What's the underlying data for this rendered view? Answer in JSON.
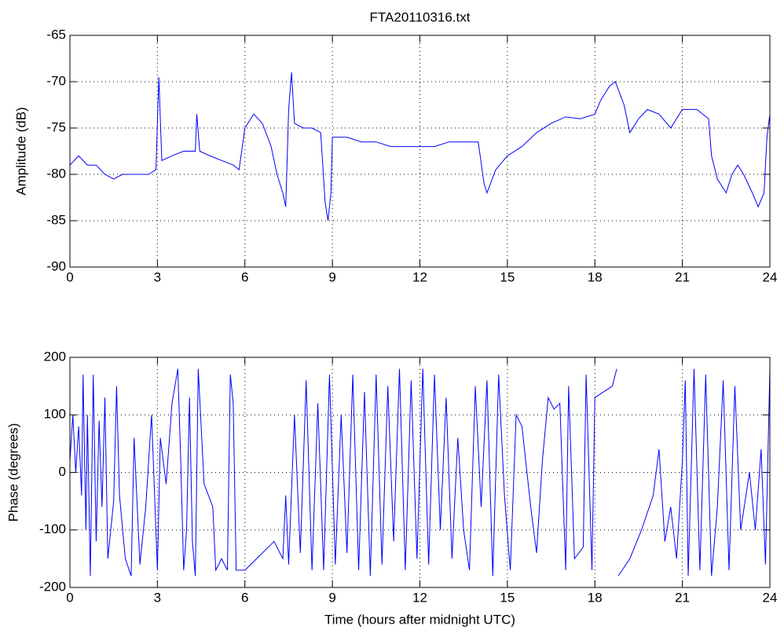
{
  "chart_data": [
    {
      "type": "line",
      "title": "FTA20110316.txt",
      "ylabel": "Amplitude (dB)",
      "color": "#0000ff",
      "grid": true,
      "xlim": [
        0,
        24
      ],
      "xticks": [
        0,
        3,
        6,
        9,
        12,
        15,
        18,
        21,
        24
      ],
      "ylim": [
        -90,
        -65
      ],
      "yticks": [
        -90,
        -85,
        -80,
        -75,
        -70,
        -65
      ],
      "x": [
        0,
        0.3,
        0.6,
        0.9,
        1.2,
        1.5,
        1.8,
        2.1,
        2.4,
        2.7,
        2.95,
        3.05,
        3.15,
        3.5,
        3.9,
        4.3,
        4.35,
        4.45,
        4.8,
        5.2,
        5.6,
        5.8,
        6.0,
        6.3,
        6.6,
        6.9,
        7.1,
        7.3,
        7.4,
        7.5,
        7.6,
        7.7,
        8.0,
        8.3,
        8.6,
        8.75,
        8.85,
        8.95,
        9.0,
        9.5,
        10,
        10.5,
        11,
        11.5,
        12,
        12.5,
        13,
        13.5,
        14.0,
        14.2,
        14.3,
        14.6,
        15,
        15.5,
        16,
        16.5,
        17,
        17.5,
        18,
        18.2,
        18.5,
        18.7,
        19,
        19.2,
        19.5,
        19.8,
        20.2,
        20.6,
        21,
        21.5,
        21.9,
        22,
        22.2,
        22.5,
        22.7,
        22.9,
        23.1,
        23.4,
        23.6,
        23.8,
        23.9,
        24
      ],
      "values": [
        -79,
        -78,
        -79,
        -79,
        -80,
        -80.5,
        -80,
        -80,
        -80,
        -80,
        -79.5,
        -69.5,
        -78.5,
        -78,
        -77.5,
        -77.5,
        -73.5,
        -77.5,
        -78,
        -78.5,
        -79,
        -79.5,
        -75,
        -73.5,
        -74.5,
        -77,
        -80,
        -82,
        -83.5,
        -73,
        -69,
        -74.5,
        -75,
        -75,
        -75.5,
        -83,
        -85,
        -82,
        -76,
        -76,
        -76.5,
        -76.5,
        -77,
        -77,
        -77,
        -77,
        -76.5,
        -76.5,
        -76.5,
        -81,
        -82,
        -79.5,
        -78,
        -77,
        -75.5,
        -74.5,
        -73.8,
        -74,
        -73.5,
        -72,
        -70.5,
        -70,
        -72.5,
        -75.5,
        -74,
        -73,
        -73.5,
        -75,
        -73,
        -73,
        -74,
        -78,
        -80.5,
        -82,
        -80,
        -79,
        -80,
        -82,
        -83.5,
        -82,
        -76,
        -73.5
      ]
    },
    {
      "type": "line",
      "ylabel": "Phase (degrees)",
      "xlabel": "Time (hours after midnight UTC)",
      "color": "#0000ff",
      "grid": true,
      "xlim": [
        0,
        24
      ],
      "xticks": [
        0,
        3,
        6,
        9,
        12,
        15,
        18,
        21,
        24
      ],
      "ylim": [
        -200,
        200
      ],
      "yticks": [
        -200,
        -100,
        0,
        100,
        200
      ],
      "x": [
        0,
        0.1,
        0.2,
        0.3,
        0.4,
        0.45,
        0.55,
        0.6,
        0.7,
        0.8,
        0.9,
        1.0,
        1.1,
        1.2,
        1.3,
        1.5,
        1.6,
        1.7,
        1.9,
        2.1,
        2.2,
        2.4,
        2.6,
        2.8,
        3.0,
        3.1,
        3.3,
        3.5,
        3.7,
        3.8,
        3.9,
        4.0,
        4.1,
        4.2,
        4.3,
        4.4,
        4.6,
        4.9,
        5.0,
        5.2,
        5.4,
        5.5,
        5.6,
        5.7,
        6,
        6.5,
        7.0,
        7.3,
        7.4,
        7.5,
        7.7,
        7.9,
        8.1,
        8.3,
        8.5,
        8.7,
        8.9,
        9.1,
        9.3,
        9.5,
        9.7,
        9.9,
        10.1,
        10.3,
        10.5,
        10.7,
        10.9,
        11.1,
        11.3,
        11.5,
        11.7,
        11.9,
        12.1,
        12.3,
        12.5,
        12.7,
        12.9,
        13.1,
        13.3,
        13.5,
        13.7,
        13.9,
        14.1,
        14.3,
        14.5,
        14.7,
        14.9,
        15.1,
        15.3,
        15.5,
        15.8,
        16.0,
        16.2,
        16.4,
        16.6,
        16.8,
        17.0,
        17.1,
        17.3,
        17.6,
        17.7,
        17.9,
        18.0,
        18.3,
        18.6,
        18.75,
        18.77,
        18.8,
        19.2,
        19.6,
        20.0,
        20.2,
        20.4,
        20.6,
        20.8,
        21.0,
        21.1,
        21.2,
        21.4,
        21.6,
        21.8,
        22.0,
        22.2,
        22.4,
        22.6,
        22.8,
        23.0,
        23.3,
        23.5,
        23.7,
        23.85,
        24
      ],
      "values": [
        20,
        100,
        0,
        80,
        -40,
        170,
        -100,
        100,
        -180,
        170,
        -120,
        90,
        -60,
        130,
        -150,
        -50,
        150,
        -40,
        -150,
        -180,
        60,
        -160,
        -60,
        100,
        -170,
        60,
        -20,
        120,
        180,
        20,
        -170,
        -100,
        130,
        -120,
        -180,
        180,
        -20,
        -60,
        -170,
        -150,
        -170,
        170,
        120,
        -170,
        -170,
        -145,
        -120,
        -150,
        -40,
        -160,
        100,
        -140,
        160,
        -170,
        120,
        -170,
        170,
        -160,
        100,
        -140,
        170,
        -170,
        140,
        -180,
        170,
        -160,
        150,
        -120,
        180,
        -170,
        160,
        -150,
        180,
        -160,
        170,
        -100,
        130,
        -150,
        60,
        -100,
        -170,
        150,
        -60,
        160,
        -180,
        170,
        -40,
        -170,
        100,
        80,
        -60,
        -140,
        20,
        130,
        110,
        120,
        -170,
        150,
        -150,
        -130,
        170,
        -170,
        130,
        140,
        150,
        180,
        null,
        -180,
        -150,
        -100,
        -40,
        40,
        -120,
        -60,
        -150,
        20,
        160,
        -180,
        180,
        -170,
        170,
        -180,
        -60,
        160,
        -170,
        150,
        -100,
        0,
        -100,
        40,
        -160,
        180
      ]
    }
  ]
}
